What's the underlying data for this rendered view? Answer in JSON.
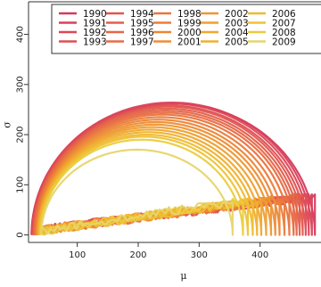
{
  "chart_data": {
    "type": "line",
    "title": "",
    "xlabel": "μ",
    "ylabel": "σ",
    "xlim": [
      20,
      500
    ],
    "ylim": [
      -15,
      465
    ],
    "x_ticks": [
      100,
      200,
      300,
      400
    ],
    "y_ticks": [
      0,
      100,
      200,
      300,
      400
    ],
    "grid": false,
    "legend_position": "top",
    "legend_columns": 6,
    "series": [
      {
        "name": "1990",
        "color": "#d43a5e",
        "arc_start": 25,
        "arc_end": 490,
        "arc_peak": 262
      },
      {
        "name": "1991",
        "color": "#d8405a",
        "arc_start": 25,
        "arc_end": 485,
        "arc_peak": 264
      },
      {
        "name": "1992",
        "color": "#dc4757",
        "arc_start": 26,
        "arc_end": 480,
        "arc_peak": 262
      },
      {
        "name": "1993",
        "color": "#df4e53",
        "arc_start": 27,
        "arc_end": 475,
        "arc_peak": 258
      },
      {
        "name": "1994",
        "color": "#e1564f",
        "arc_start": 28,
        "arc_end": 470,
        "arc_peak": 256
      },
      {
        "name": "1995",
        "color": "#e35d4b",
        "arc_start": 28,
        "arc_end": 465,
        "arc_peak": 252
      },
      {
        "name": "1996",
        "color": "#e56547",
        "arc_start": 29,
        "arc_end": 460,
        "arc_peak": 248
      },
      {
        "name": "1997",
        "color": "#e76c43",
        "arc_start": 30,
        "arc_end": 455,
        "arc_peak": 244
      },
      {
        "name": "1998",
        "color": "#e9743f",
        "arc_start": 31,
        "arc_end": 448,
        "arc_peak": 240
      },
      {
        "name": "1999",
        "color": "#eb7c3b",
        "arc_start": 32,
        "arc_end": 440,
        "arc_peak": 235
      },
      {
        "name": "2000",
        "color": "#ec8537",
        "arc_start": 33,
        "arc_end": 432,
        "arc_peak": 230
      },
      {
        "name": "2001",
        "color": "#ed8d34",
        "arc_start": 34,
        "arc_end": 425,
        "arc_peak": 225
      },
      {
        "name": "2002",
        "color": "#ee9632",
        "arc_start": 35,
        "arc_end": 418,
        "arc_peak": 220
      },
      {
        "name": "2003",
        "color": "#ef9f30",
        "arc_start": 35,
        "arc_end": 410,
        "arc_peak": 215
      },
      {
        "name": "2004",
        "color": "#efa82f",
        "arc_start": 36,
        "arc_end": 402,
        "arc_peak": 210
      },
      {
        "name": "2005",
        "color": "#efb12f",
        "arc_start": 37,
        "arc_end": 395,
        "arc_peak": 205
      },
      {
        "name": "2006",
        "color": "#efba31",
        "arc_start": 38,
        "arc_end": 388,
        "arc_peak": 200
      },
      {
        "name": "2007",
        "color": "#eec335",
        "arc_start": 39,
        "arc_end": 380,
        "arc_peak": 196
      },
      {
        "name": "2008",
        "color": "#ebcc3d",
        "arc_start": 40,
        "arc_end": 372,
        "arc_peak": 190
      },
      {
        "name": "2009",
        "color": "#e7d56d",
        "arc_start": 41,
        "arc_end": 355,
        "arc_peak": 170
      }
    ]
  }
}
